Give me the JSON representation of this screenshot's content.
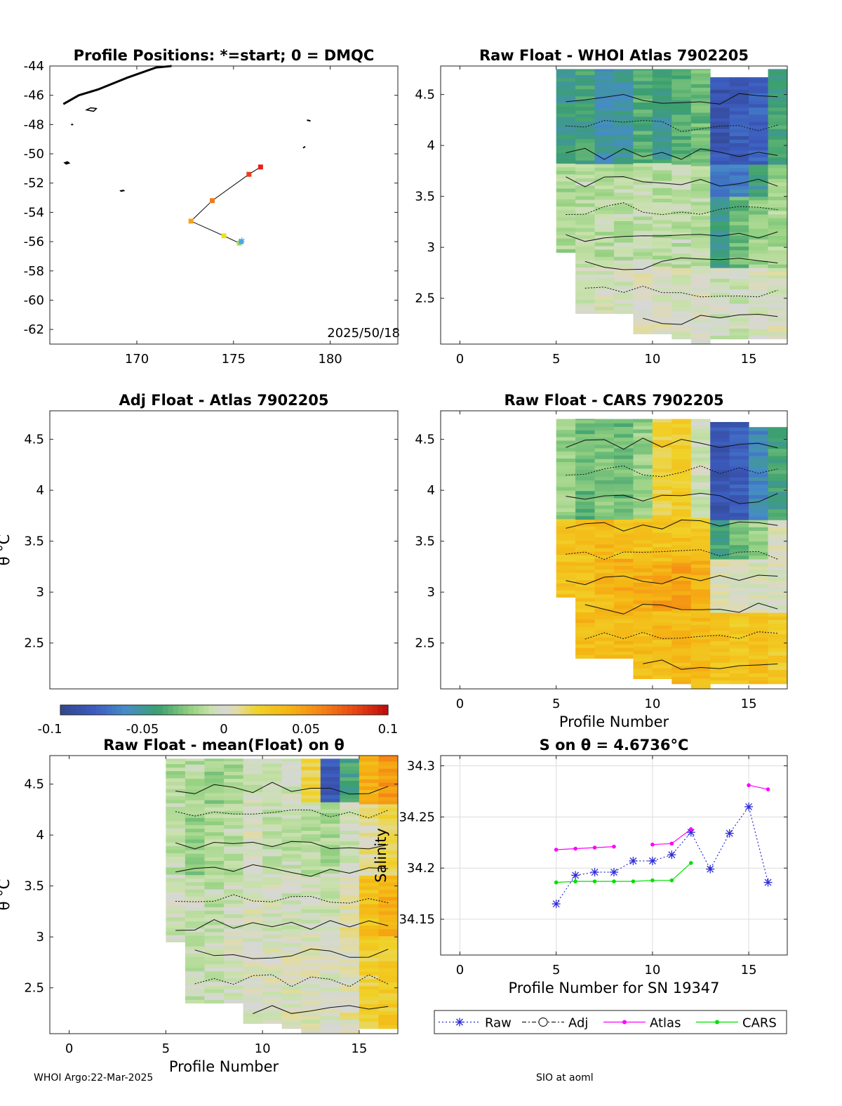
{
  "footer": {
    "left": "WHOI Argo:22-Mar-2025",
    "right": "SIO at aoml"
  },
  "colorbar": {
    "ticks": [
      "-0.1",
      "-0.05",
      "0",
      "0.05",
      "0.1"
    ],
    "vmin": -0.1,
    "vmax": 0.1
  },
  "chart_data": [
    {
      "id": "map",
      "type": "scatter",
      "title": "Profile Positions: *=start; 0 = DMQC",
      "annotation": "2025/50/18",
      "xlim": [
        165.5,
        183.5
      ],
      "ylim": [
        -63,
        -44
      ],
      "xticks": [
        "170",
        "175",
        "180"
      ],
      "xtick_values": [
        170,
        175,
        180
      ],
      "yticks": [
        "-44",
        "-46",
        "-48",
        "-50",
        "-52",
        "-54",
        "-56",
        "-58",
        "-60",
        "-62"
      ],
      "ytick_values": [
        -44,
        -46,
        -48,
        -50,
        -52,
        -54,
        -56,
        -58,
        -60,
        -62
      ],
      "track": [
        {
          "lon": 176.4,
          "lat": -50.9,
          "color": "#e8201c"
        },
        {
          "lon": 175.8,
          "lat": -51.4,
          "color": "#e8401c"
        },
        {
          "lon": 173.9,
          "lat": -53.2,
          "color": "#f07a1a"
        },
        {
          "lon": 172.8,
          "lat": -54.6,
          "color": "#f5a21a"
        },
        {
          "lon": 174.5,
          "lat": -55.6,
          "color": "#f0e01a"
        },
        {
          "lon": 175.3,
          "lat": -56.1,
          "color": "#a8e04a"
        },
        {
          "lon": 175.4,
          "lat": -56.0,
          "color": "#4da8e8"
        }
      ]
    },
    {
      "id": "raw_atlas",
      "type": "heatmap",
      "title": "Raw Float - WHOI Atlas  7902205",
      "xlim": [
        -1,
        17
      ],
      "ylim": [
        2.05,
        4.78
      ],
      "xticks": [
        "0",
        "5",
        "10",
        "15"
      ],
      "xtick_values": [
        0,
        5,
        10,
        15
      ],
      "yticks": [
        "4.5",
        "4",
        "3.5",
        "3",
        "2.5"
      ],
      "ytick_values": [
        4.5,
        4,
        3.5,
        3,
        2.5
      ],
      "profiles": [
        5,
        6,
        7,
        8,
        9,
        10,
        11,
        12,
        13,
        14,
        15,
        16
      ],
      "theta_min": [
        2.95,
        2.35,
        2.35,
        2.35,
        2.15,
        2.15,
        2.1,
        2.05,
        2.1,
        2.1,
        2.1,
        2.1
      ],
      "theta_max": [
        4.75,
        4.75,
        4.75,
        4.75,
        4.75,
        4.75,
        4.75,
        4.75,
        4.67,
        4.67,
        4.67,
        4.75
      ],
      "bands": [
        {
          "lo": 3.8,
          "hi": 4.8,
          "vals": [
            -0.045,
            -0.04,
            -0.055,
            -0.05,
            -0.035,
            -0.045,
            -0.035,
            -0.03,
            -0.085,
            -0.08,
            -0.075,
            -0.04
          ]
        },
        {
          "lo": 3.5,
          "hi": 3.8,
          "vals": [
            -0.015,
            -0.01,
            -0.015,
            -0.012,
            -0.01,
            -0.012,
            -0.01,
            -0.012,
            -0.07,
            -0.065,
            -0.045,
            -0.02
          ]
        },
        {
          "lo": 2.8,
          "hi": 3.5,
          "vals": [
            -0.015,
            -0.012,
            -0.012,
            -0.01,
            -0.01,
            -0.012,
            -0.01,
            -0.01,
            -0.045,
            -0.03,
            -0.02,
            -0.015
          ]
        },
        {
          "lo": 2.0,
          "hi": 2.8,
          "vals": [
            0.0,
            -0.005,
            -0.002,
            -0.003,
            0.0,
            0.0,
            0.0,
            0.0,
            -0.005,
            -0.005,
            -0.003,
            0.0
          ]
        }
      ]
    },
    {
      "id": "adj_atlas",
      "type": "heatmap",
      "title": "Adj Float - Atlas  7902205",
      "ylabel": "θ °C",
      "xlim": [
        -1,
        17
      ],
      "ylim": [
        2.05,
        4.78
      ],
      "yticks": [
        "4.5",
        "4",
        "3.5",
        "3",
        "2.5"
      ],
      "ytick_values": [
        4.5,
        4,
        3.5,
        3,
        2.5
      ],
      "profiles": []
    },
    {
      "id": "raw_cars",
      "type": "heatmap",
      "title": "Raw Float - CARS  7902205",
      "xlabel": "Profile Number",
      "xlim": [
        -1,
        17
      ],
      "ylim": [
        2.05,
        4.78
      ],
      "xticks": [
        "0",
        "5",
        "10",
        "15"
      ],
      "xtick_values": [
        0,
        5,
        10,
        15
      ],
      "yticks": [
        "4.5",
        "4",
        "3.5",
        "3",
        "2.5"
      ],
      "ytick_values": [
        4.5,
        4,
        3.5,
        3,
        2.5
      ],
      "profiles": [
        5,
        6,
        7,
        8,
        9,
        10,
        11,
        12,
        13,
        14,
        15,
        16
      ],
      "theta_min": [
        2.95,
        2.35,
        2.35,
        2.35,
        2.15,
        2.15,
        2.1,
        2.05,
        2.1,
        2.1,
        2.1,
        2.1
      ],
      "theta_max": [
        4.7,
        4.7,
        4.7,
        4.7,
        4.7,
        4.7,
        4.7,
        4.7,
        4.67,
        4.67,
        4.62,
        4.62
      ],
      "bands": [
        {
          "lo": 3.7,
          "hi": 4.8,
          "vals": [
            -0.02,
            -0.03,
            -0.025,
            -0.03,
            -0.02,
            0.02,
            0.025,
            -0.005,
            -0.085,
            -0.08,
            -0.06,
            -0.04
          ]
        },
        {
          "lo": 3.3,
          "hi": 3.7,
          "vals": [
            0.03,
            0.03,
            0.035,
            0.03,
            0.03,
            0.03,
            0.03,
            0.025,
            -0.04,
            -0.03,
            -0.02,
            0.0
          ]
        },
        {
          "lo": 2.8,
          "hi": 3.3,
          "vals": [
            0.03,
            0.03,
            0.035,
            0.04,
            0.04,
            0.045,
            0.045,
            0.04,
            0.0,
            0.0,
            0.0,
            0.0
          ]
        },
        {
          "lo": 2.0,
          "hi": 2.8,
          "vals": [
            0.03,
            0.035,
            0.035,
            0.035,
            0.035,
            0.035,
            0.035,
            0.035,
            0.03,
            0.025,
            0.03,
            0.025
          ]
        }
      ]
    },
    {
      "id": "raw_mean",
      "type": "heatmap",
      "title": "Raw Float - mean(Float) on θ",
      "xlabel": "Profile Number",
      "ylabel": "θ °C",
      "xlim": [
        -1,
        17
      ],
      "ylim": [
        2.05,
        4.78
      ],
      "xticks": [
        "0",
        "5",
        "10",
        "15"
      ],
      "xtick_values": [
        0,
        5,
        10,
        15
      ],
      "yticks": [
        "4.5",
        "4",
        "3.5",
        "3",
        "2.5"
      ],
      "ytick_values": [
        4.5,
        4,
        3.5,
        3,
        2.5
      ],
      "profiles": [
        5,
        6,
        7,
        8,
        9,
        10,
        11,
        12,
        13,
        14,
        15,
        16
      ],
      "theta_min": [
        2.95,
        2.35,
        2.35,
        2.35,
        2.15,
        2.15,
        2.1,
        2.05,
        2.05,
        2.05,
        2.1,
        2.1
      ],
      "theta_max": [
        4.75,
        4.75,
        4.75,
        4.75,
        4.75,
        4.75,
        4.75,
        4.75,
        4.75,
        4.75,
        4.78,
        4.78
      ],
      "bands": [
        {
          "lo": 4.3,
          "hi": 4.8,
          "vals": [
            -0.015,
            -0.012,
            -0.02,
            -0.015,
            -0.005,
            -0.01,
            -0.005,
            0.02,
            -0.08,
            -0.04,
            0.04,
            0.05
          ]
        },
        {
          "lo": 3.6,
          "hi": 4.3,
          "vals": [
            -0.01,
            -0.02,
            -0.015,
            -0.01,
            -0.002,
            -0.01,
            -0.01,
            -0.01,
            -0.015,
            -0.005,
            0.01,
            0.015
          ]
        },
        {
          "lo": 3.0,
          "hi": 3.6,
          "vals": [
            -0.005,
            -0.005,
            -0.01,
            -0.005,
            0.0,
            -0.003,
            -0.005,
            -0.005,
            -0.005,
            0.005,
            0.03,
            0.04
          ]
        },
        {
          "lo": 2.0,
          "hi": 3.0,
          "vals": [
            -0.005,
            -0.008,
            -0.005,
            -0.003,
            0.0,
            0.0,
            0.0,
            0.0,
            0.0,
            0.005,
            0.02,
            0.025
          ]
        }
      ]
    },
    {
      "id": "salinity",
      "type": "line",
      "title": "S on θ = 4.6736°C",
      "xlabel": "Profile Number for SN 19347",
      "ylabel": "Salinity",
      "xlim": [
        -1,
        17
      ],
      "ylim": [
        34.115,
        34.31
      ],
      "xticks": [
        "0",
        "5",
        "10",
        "15"
      ],
      "xtick_values": [
        0,
        5,
        10,
        15
      ],
      "yticks": [
        "34.3",
        "34.25",
        "34.2",
        "34.15"
      ],
      "ytick_values": [
        34.3,
        34.25,
        34.2,
        34.15
      ],
      "legend": [
        "Raw",
        "Adj",
        "Atlas",
        "CARS"
      ],
      "series": [
        {
          "name": "Raw",
          "color": "#2b2bd8",
          "marker": "star",
          "dotted": true,
          "x": [
            5,
            6,
            7,
            8,
            9,
            10,
            11,
            12,
            13,
            14,
            15,
            16
          ],
          "y": [
            34.165,
            34.193,
            34.196,
            34.196,
            34.207,
            34.207,
            34.213,
            34.235,
            34.199,
            34.234,
            34.26,
            34.186
          ]
        },
        {
          "name": "Atlas",
          "color": "#ff00ff",
          "marker": "dot",
          "segments": [
            {
              "x": [
                5,
                6,
                7,
                8
              ],
              "y": [
                34.218,
                34.219,
                34.22,
                34.221
              ]
            },
            {
              "x": [
                10,
                11,
                12
              ],
              "y": [
                34.223,
                34.224,
                34.238
              ]
            },
            {
              "x": [
                15,
                16
              ],
              "y": [
                34.281,
                34.277
              ]
            }
          ]
        },
        {
          "name": "CARS",
          "color": "#00e000",
          "marker": "dot",
          "segments": [
            {
              "x": [
                5,
                6,
                7,
                8,
                9,
                10,
                11,
                12
              ],
              "y": [
                34.186,
                34.187,
                34.187,
                34.187,
                34.187,
                34.188,
                34.188,
                34.205
              ]
            }
          ]
        }
      ]
    }
  ]
}
